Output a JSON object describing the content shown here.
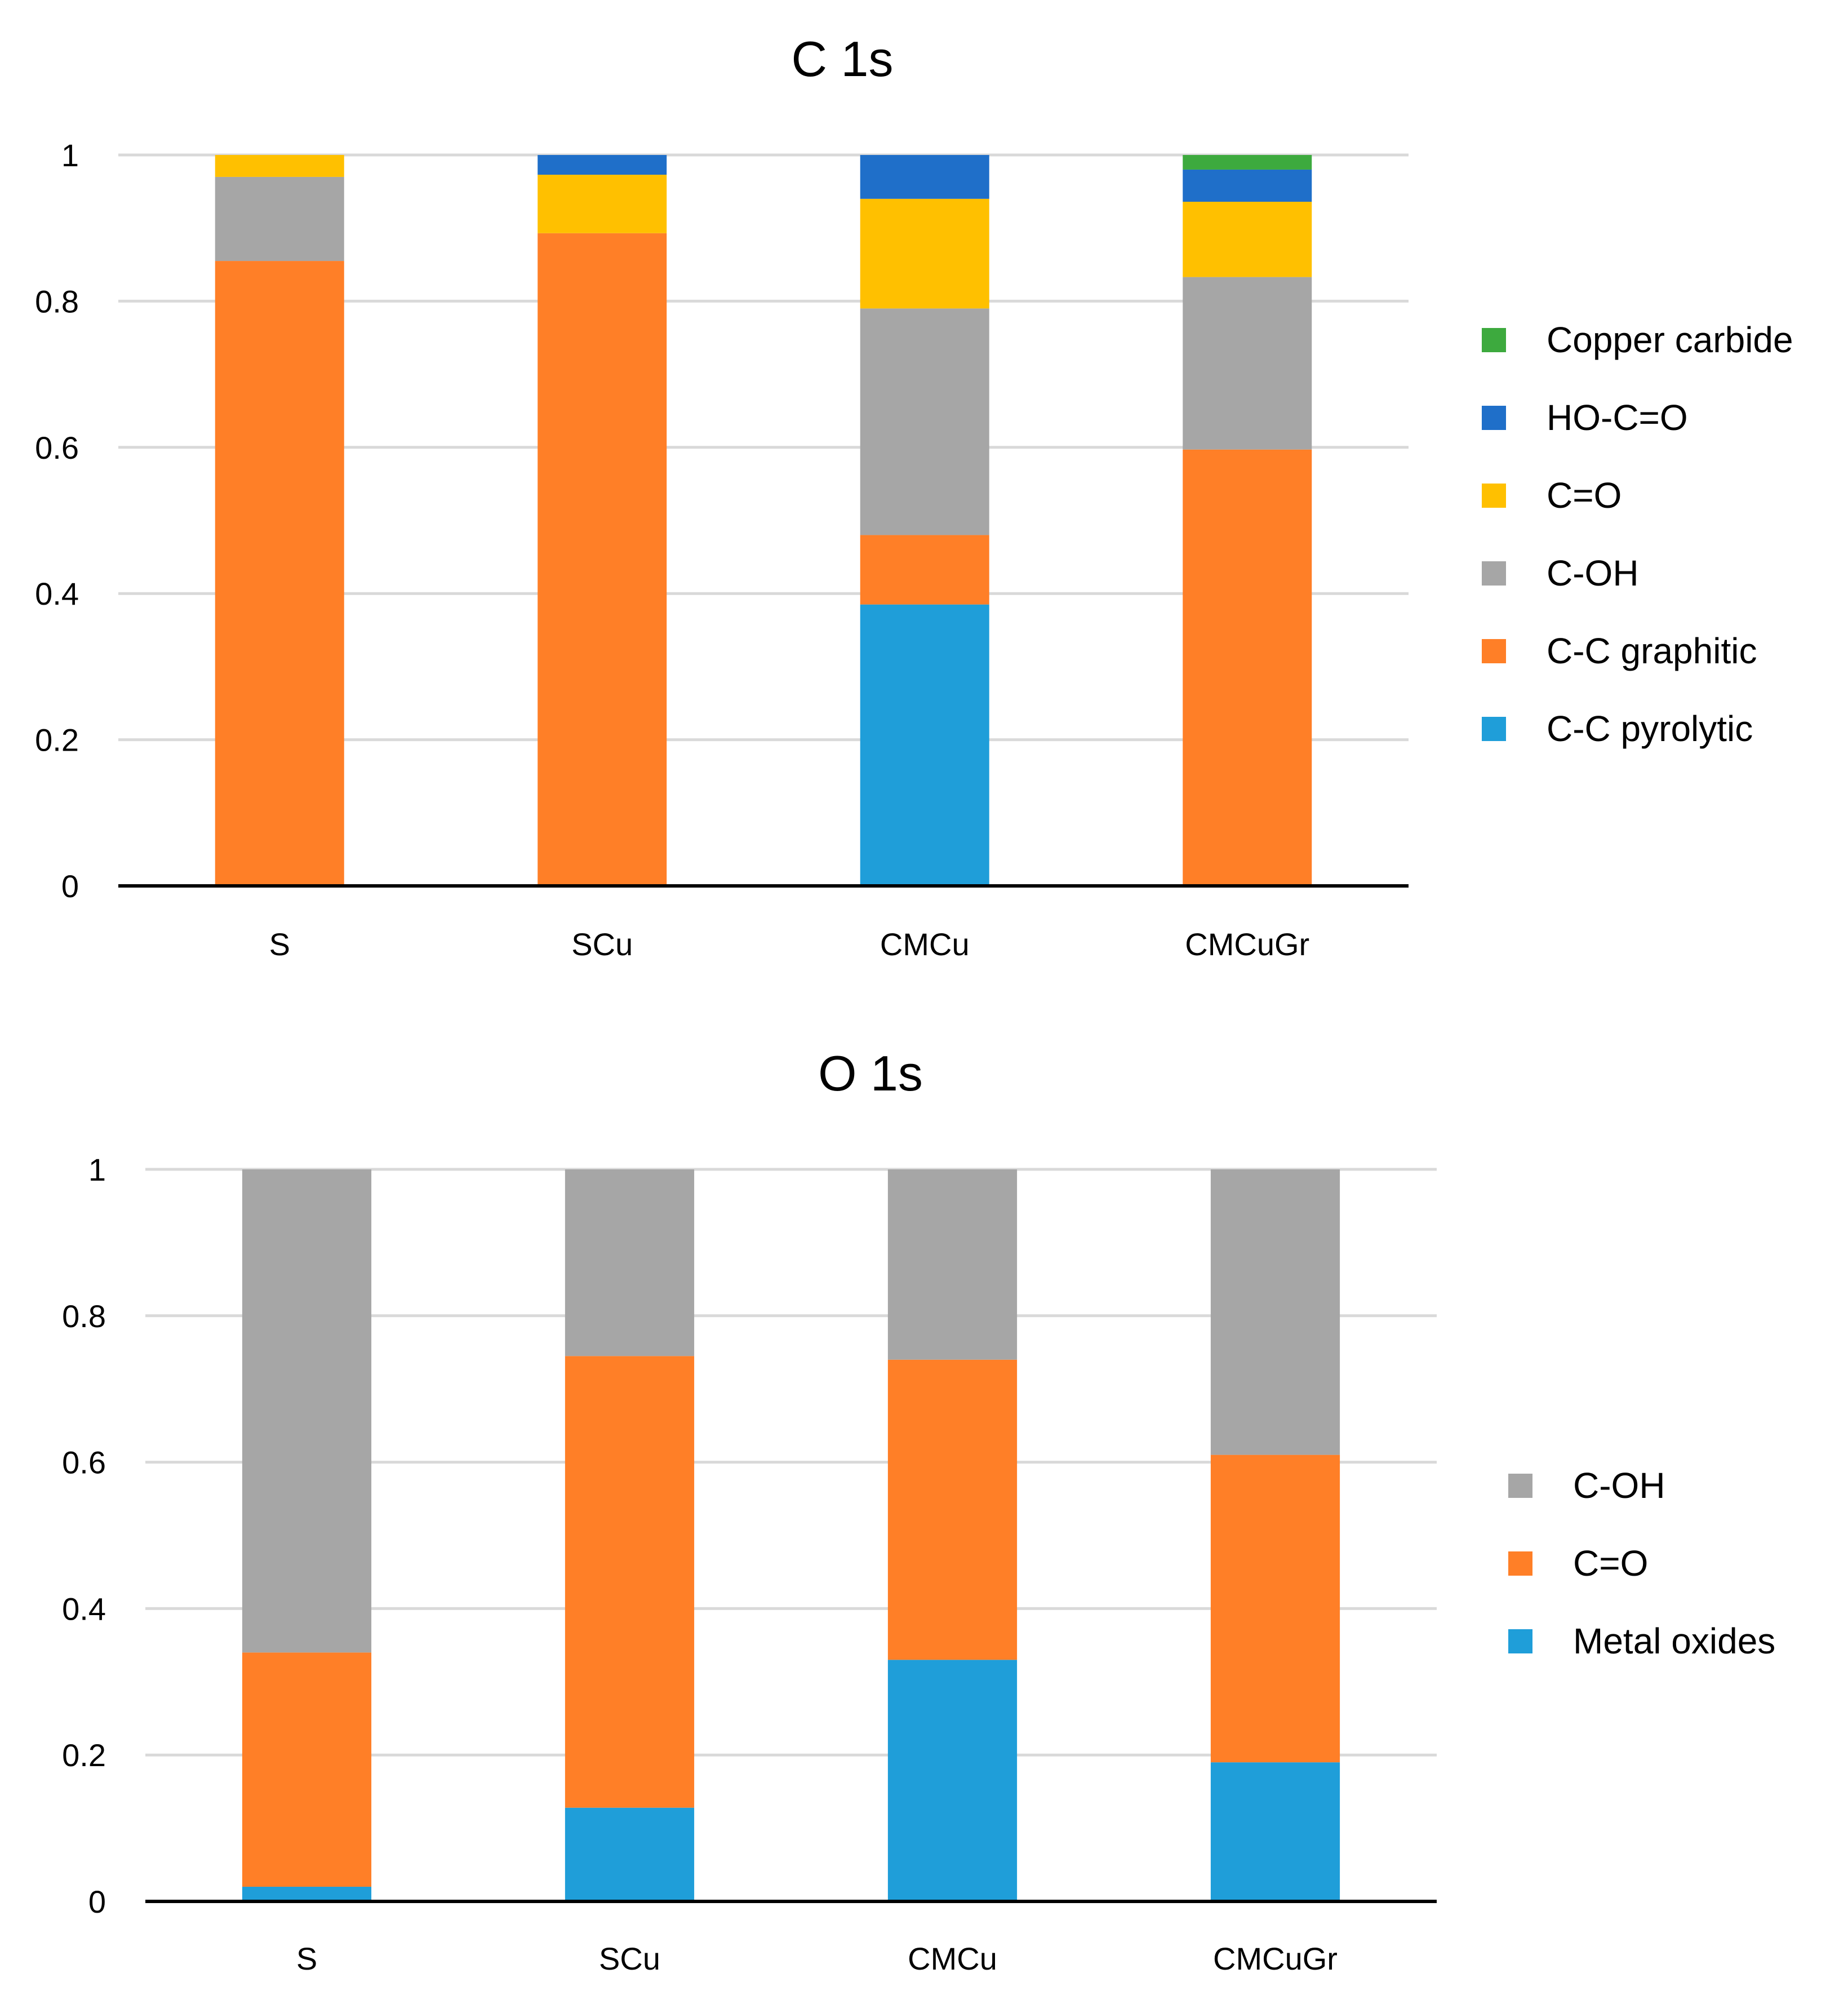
{
  "chart_data": [
    {
      "type": "bar",
      "stacked": true,
      "title": "C 1s",
      "xlabel": "",
      "ylabel": "",
      "ylim": [
        0,
        1
      ],
      "yticks": [
        "0",
        "0.2",
        "0.4",
        "0.6",
        "0.8",
        "1"
      ],
      "categories": [
        "S",
        "SCu",
        "CMCu",
        "CMCuGr"
      ],
      "grid": true,
      "legend_position": "right",
      "series": [
        {
          "name": "C-C pyrolytic",
          "color": "#1F9ED9",
          "values": [
            0,
            0,
            0.385,
            0
          ]
        },
        {
          "name": "C-C graphitic",
          "color": "#FF7F27",
          "values": [
            0.855,
            0.893,
            0.095,
            0.597
          ]
        },
        {
          "name": "C-OH",
          "color": "#A6A6A6",
          "values": [
            0.115,
            0,
            0.31,
            0.236
          ]
        },
        {
          "name": "C=O",
          "color": "#FFC000",
          "values": [
            0.03,
            0.08,
            0.15,
            0.103
          ]
        },
        {
          "name": "HO-C=O",
          "color": "#1F6FC9",
          "values": [
            0,
            0.027,
            0.06,
            0.044
          ]
        },
        {
          "name": "Copper carbide",
          "color": "#3DAA3E",
          "values": [
            0,
            0,
            0,
            0.02
          ]
        }
      ]
    },
    {
      "type": "bar",
      "stacked": true,
      "title": "O 1s",
      "xlabel": "",
      "ylabel": "",
      "ylim": [
        0,
        1
      ],
      "yticks": [
        "0",
        "0.2",
        "0.4",
        "0.6",
        "0.8",
        "1"
      ],
      "categories": [
        "S",
        "SCu",
        "CMCu",
        "CMCuGr"
      ],
      "grid": true,
      "legend_position": "right",
      "series": [
        {
          "name": "Metal oxides",
          "color": "#1F9ED9",
          "values": [
            0.02,
            0.128,
            0.33,
            0.19
          ]
        },
        {
          "name": "C=O",
          "color": "#FF7F27",
          "values": [
            0.32,
            0.617,
            0.41,
            0.42
          ]
        },
        {
          "name": "C-OH",
          "color": "#A6A6A6",
          "values": [
            0.66,
            0.255,
            0.26,
            0.39
          ]
        }
      ]
    }
  ]
}
